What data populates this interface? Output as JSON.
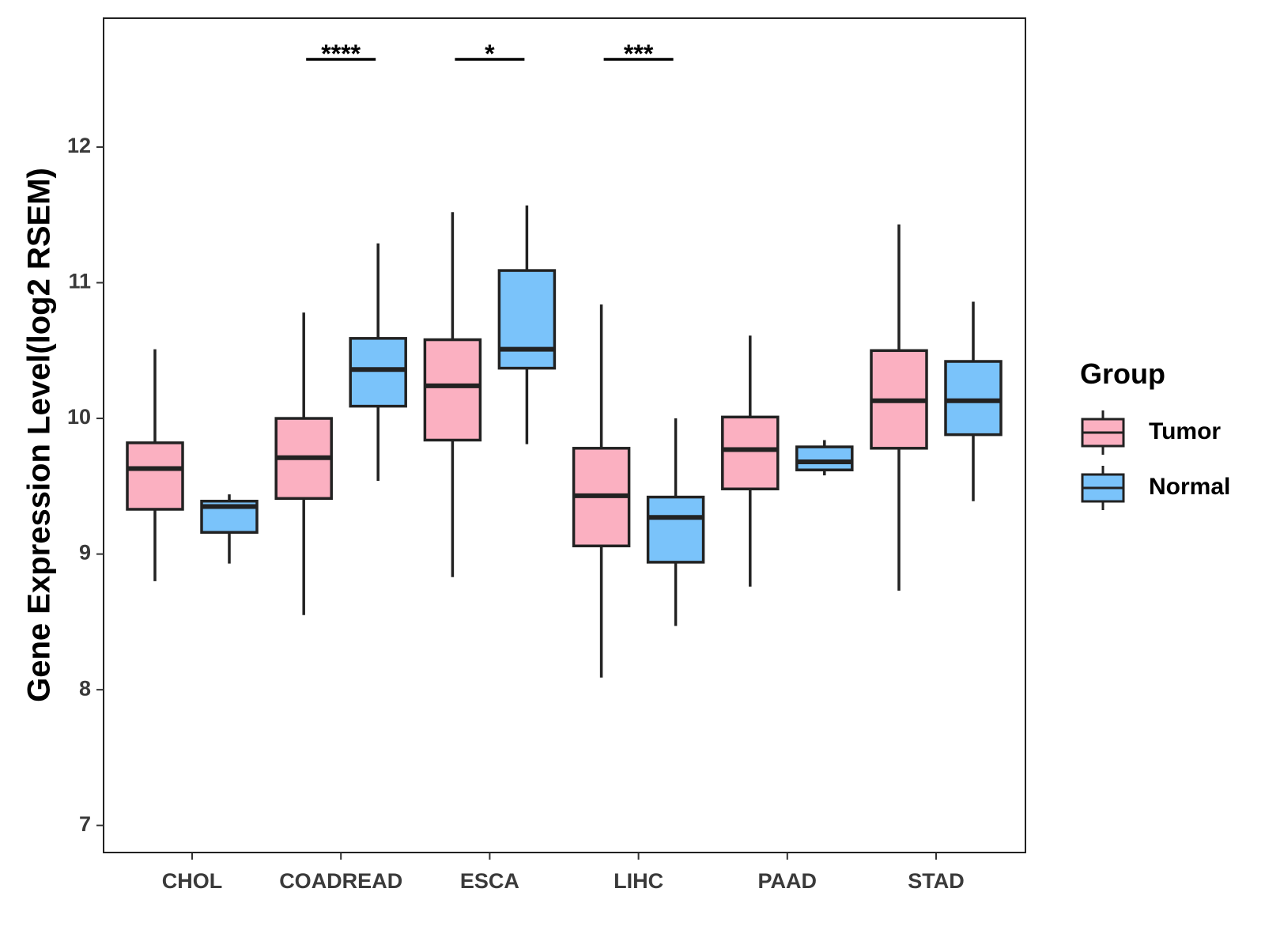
{
  "chart_data": {
    "type": "box",
    "ylabel": "Gene Expression Level(log2 RSEM)",
    "xlabel": "",
    "ylim": [
      6.8,
      12.95
    ],
    "yticks": [
      7,
      8,
      9,
      10,
      11,
      12
    ],
    "categories": [
      "CHOL",
      "COADREAD",
      "ESCA",
      "LIHC",
      "PAAD",
      "STAD"
    ],
    "grid": false,
    "legend": {
      "title": "Group",
      "position": "right",
      "entries": [
        "Tumor",
        "Normal"
      ]
    },
    "series": [
      {
        "name": "Tumor",
        "color": "#FBB0C1",
        "boxes": [
          {
            "category": "CHOL",
            "min": 8.8,
            "q1": 9.33,
            "median": 9.63,
            "q3": 9.82,
            "max": 10.51
          },
          {
            "category": "COADREAD",
            "min": 8.55,
            "q1": 9.41,
            "median": 9.71,
            "q3": 10.0,
            "max": 10.78
          },
          {
            "category": "ESCA",
            "min": 8.83,
            "q1": 9.84,
            "median": 10.24,
            "q3": 10.58,
            "max": 11.52
          },
          {
            "category": "LIHC",
            "min": 8.09,
            "q1": 9.06,
            "median": 9.43,
            "q3": 9.78,
            "max": 10.84
          },
          {
            "category": "PAAD",
            "min": 8.76,
            "q1": 9.48,
            "median": 9.77,
            "q3": 10.01,
            "max": 10.61
          },
          {
            "category": "STAD",
            "min": 8.73,
            "q1": 9.78,
            "median": 10.13,
            "q3": 10.5,
            "max": 11.43
          }
        ]
      },
      {
        "name": "Normal",
        "color": "#7AC3FA",
        "boxes": [
          {
            "category": "CHOL",
            "min": 8.93,
            "q1": 9.16,
            "median": 9.35,
            "q3": 9.39,
            "max": 9.44
          },
          {
            "category": "COADREAD",
            "min": 9.54,
            "q1": 10.09,
            "median": 10.36,
            "q3": 10.59,
            "max": 11.29
          },
          {
            "category": "ESCA",
            "min": 9.81,
            "q1": 10.37,
            "median": 10.51,
            "q3": 11.09,
            "max": 11.57
          },
          {
            "category": "LIHC",
            "min": 8.47,
            "q1": 8.94,
            "median": 9.27,
            "q3": 9.42,
            "max": 10.0
          },
          {
            "category": "PAAD",
            "min": 9.58,
            "q1": 9.62,
            "median": 9.68,
            "q3": 9.79,
            "max": 9.84
          },
          {
            "category": "STAD",
            "min": 9.39,
            "q1": 9.88,
            "median": 10.13,
            "q3": 10.42,
            "max": 10.86
          }
        ]
      }
    ],
    "annotations": [
      {
        "category": "COADREAD",
        "text": "****"
      },
      {
        "category": "ESCA",
        "text": "*"
      },
      {
        "category": "LIHC",
        "text": "***"
      }
    ]
  }
}
